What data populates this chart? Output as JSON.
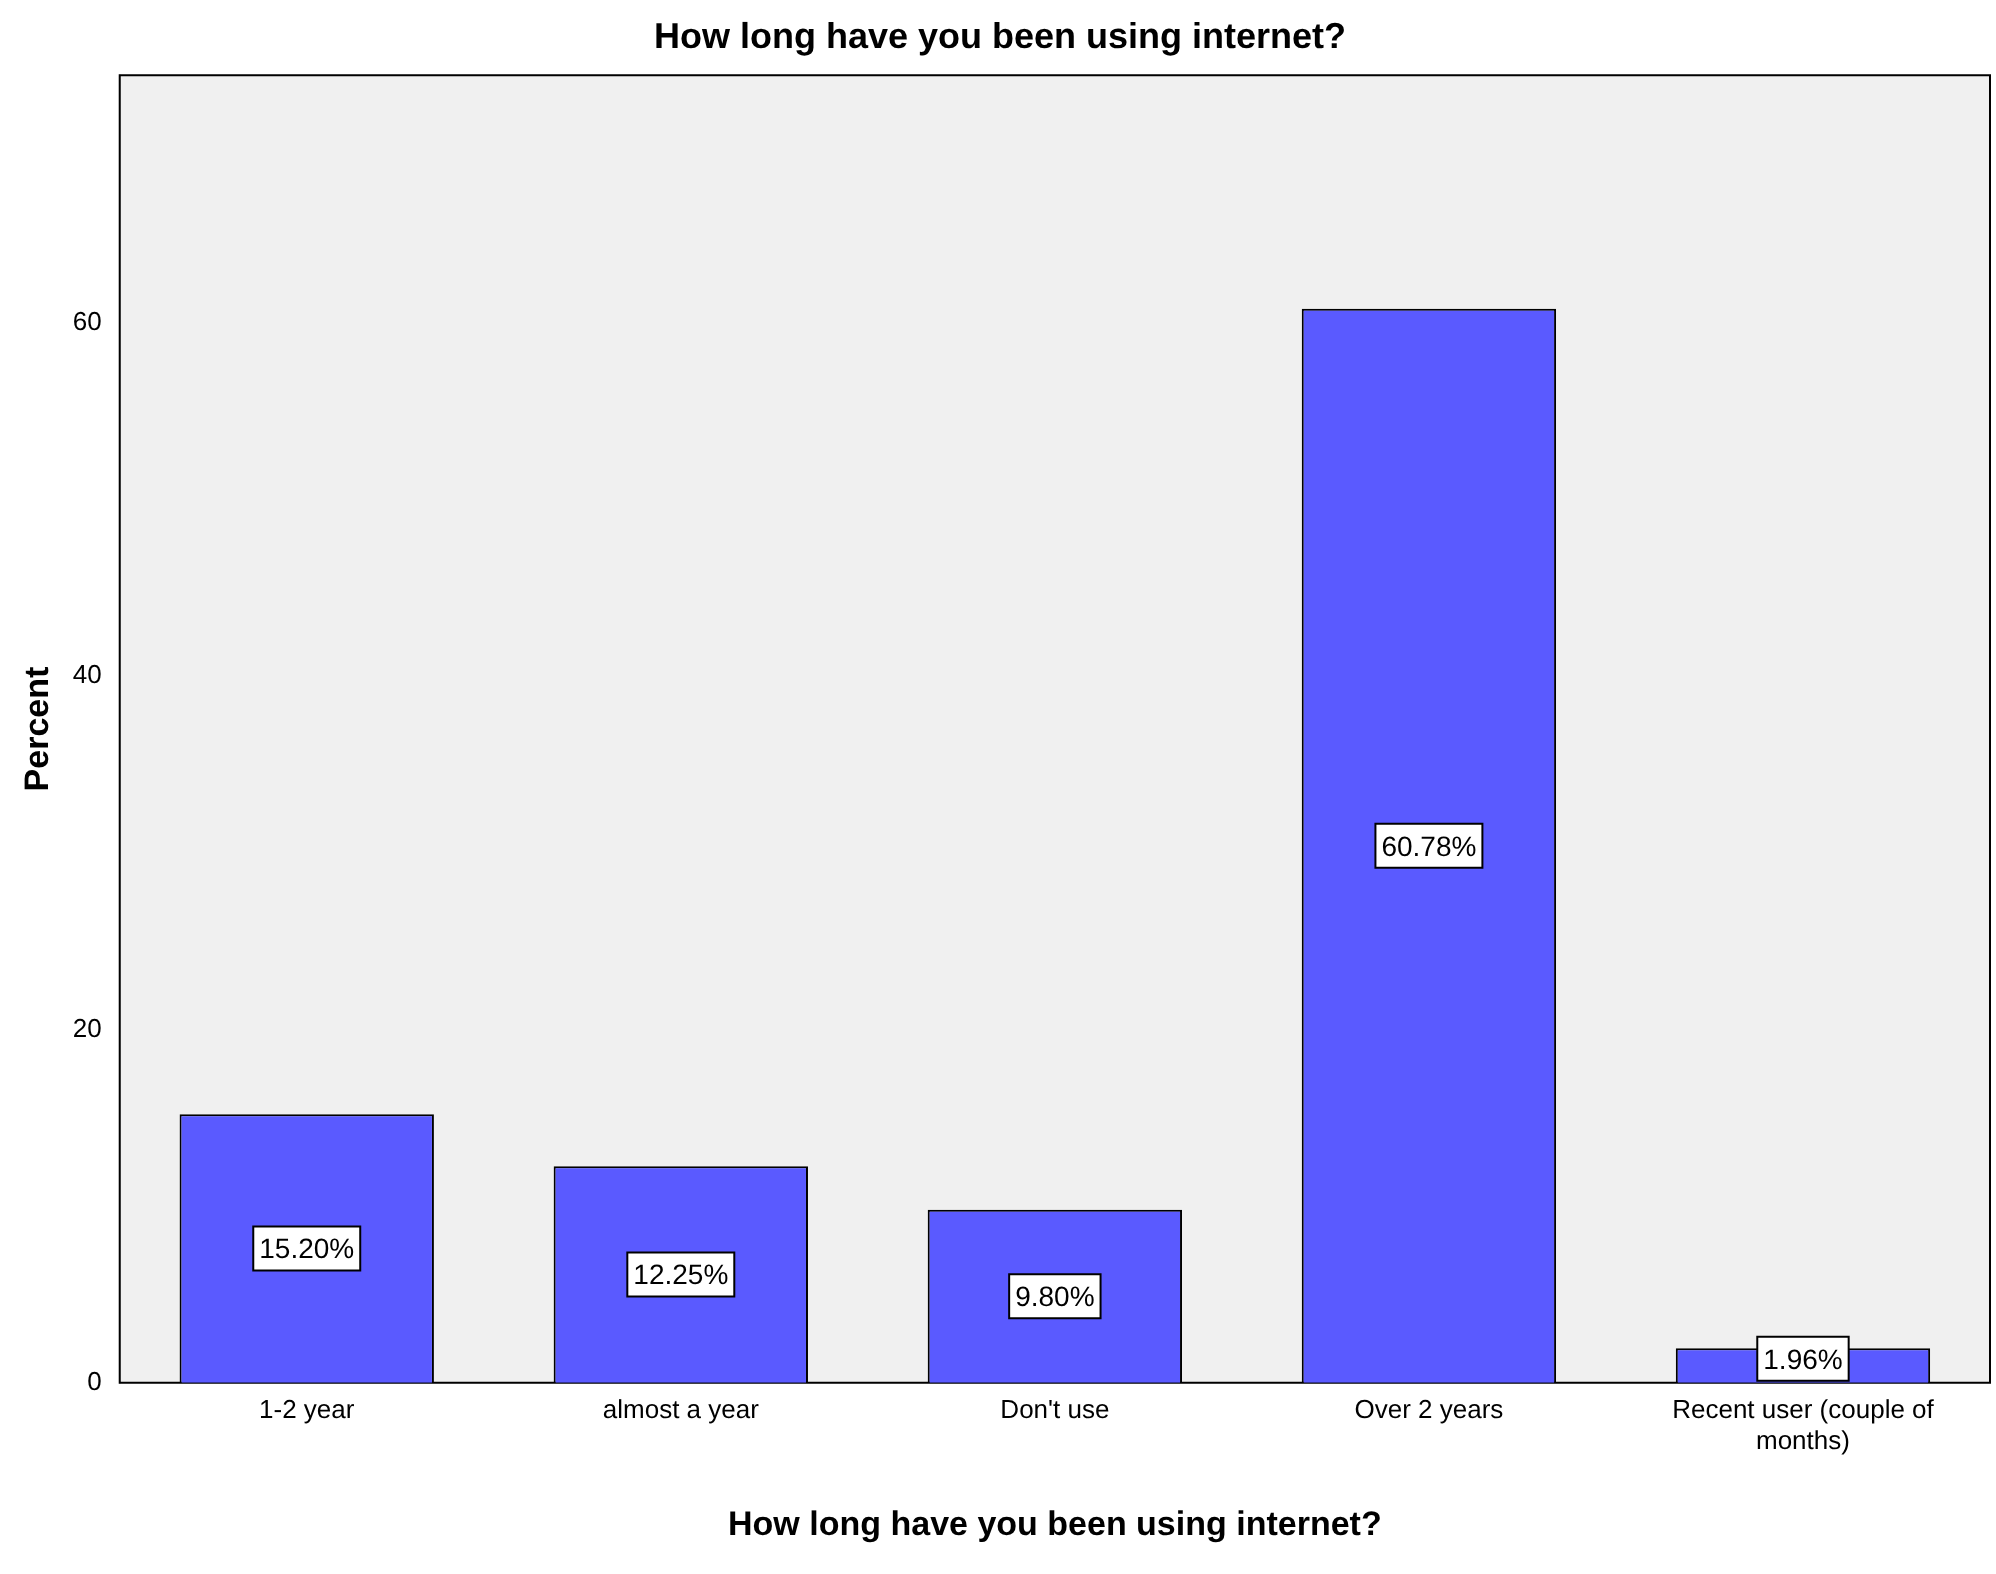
{
  "chart_data": {
    "type": "bar",
    "title": "How long have you been using internet?",
    "xlabel": "How long have you been using internet?",
    "ylabel": "Percent",
    "categories": [
      "1-2 year",
      "almost a year",
      "Don't use",
      "Over 2 years",
      "Recent user (couple of months)"
    ],
    "values": [
      15.2,
      12.25,
      9.8,
      60.78,
      1.96
    ],
    "value_labels": [
      "15.20%",
      "12.25%",
      "9.80%",
      "60.78%",
      "1.96%"
    ],
    "color": "#5a5aff",
    "ylim": [
      0,
      74
    ],
    "yticks": [
      0,
      20,
      40,
      60
    ],
    "grid": false,
    "legend": false
  }
}
